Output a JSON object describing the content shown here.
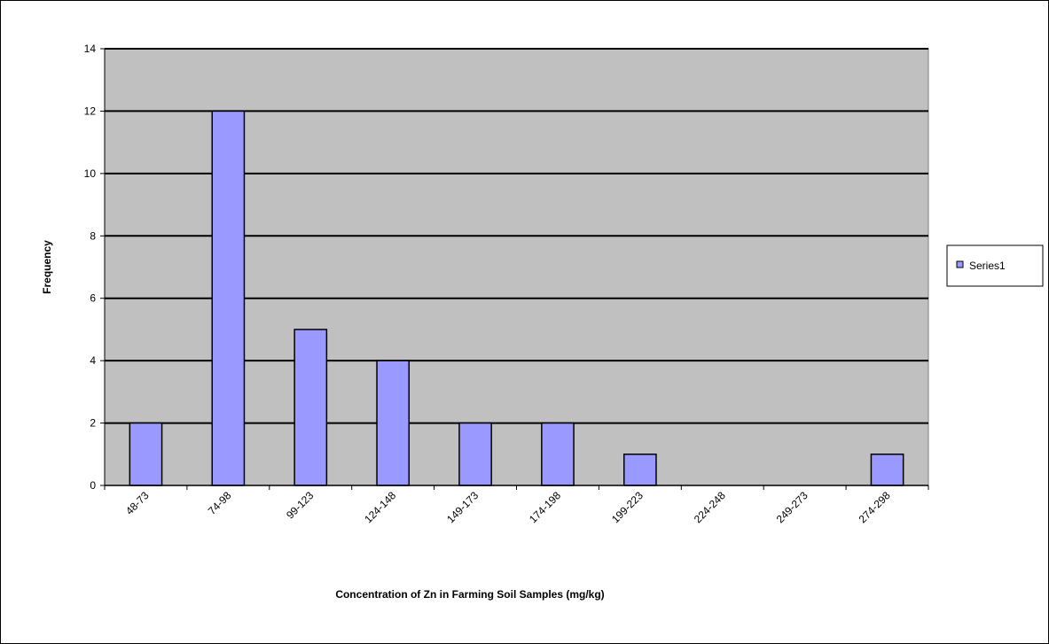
{
  "chart_data": {
    "type": "bar",
    "categories": [
      "48-73",
      "74-98",
      "99-123",
      "124-148",
      "149-173",
      "174-198",
      "199-223",
      "224-248",
      "249-273",
      "274-298"
    ],
    "series": [
      {
        "name": "Series1",
        "values": [
          2,
          12,
          5,
          4,
          2,
          2,
          1,
          0,
          0,
          1
        ]
      }
    ],
    "xlabel": "Concentration  of Zn in Farming Soil Samples (mg/kg)",
    "ylabel": "Frequency",
    "ylim": [
      0,
      14
    ],
    "yticks": [
      0,
      2,
      4,
      6,
      8,
      10,
      12,
      14
    ],
    "grid": true,
    "legend": "right",
    "colors": {
      "bar_fill": "#9999ff",
      "bar_stroke": "#000000",
      "plot_background": "#c0c0c0",
      "gridline": "#000000"
    }
  }
}
